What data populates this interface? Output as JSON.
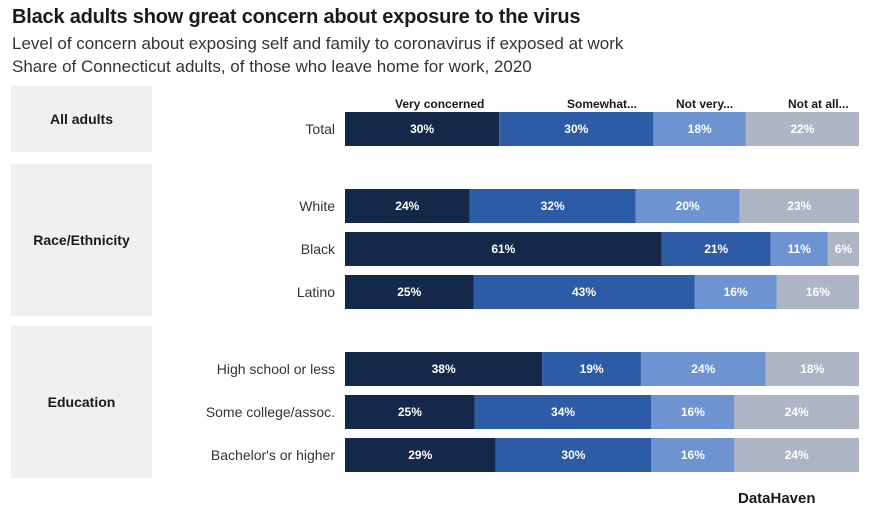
{
  "title": "Black adults show great concern about exposure to the virus",
  "subtitle_lines": [
    "Level of concern about exposing self and family to coronavirus if exposed at work",
    "Share of Connecticut adults, of those who leave home for work, 2020"
  ],
  "source": "DataHaven",
  "groups": [
    {
      "label": "All adults"
    },
    {
      "label": "Race/Ethnicity"
    },
    {
      "label": "Education"
    }
  ],
  "legend": [
    {
      "label": "Very concerned",
      "color": "#14294a"
    },
    {
      "label": "Somewhat...",
      "color": "#2d5ba6"
    },
    {
      "label": "Not very...",
      "color": "#6d93d1"
    },
    {
      "label": "Not at all...",
      "color": "#adb4c4"
    }
  ],
  "chart_data": {
    "type": "bar",
    "orientation": "horizontal",
    "stacked": true,
    "unit": "%",
    "categories": [
      "Total",
      "White",
      "Black",
      "Latino",
      "High school or less",
      "Some college/assoc.",
      "Bachelor's or higher"
    ],
    "category_groups": [
      "All adults",
      "Race/Ethnicity",
      "Race/Ethnicity",
      "Race/Ethnicity",
      "Education",
      "Education",
      "Education"
    ],
    "series": [
      {
        "name": "Very concerned",
        "values": [
          30,
          24,
          61,
          25,
          38,
          25,
          29
        ]
      },
      {
        "name": "Somewhat...",
        "values": [
          30,
          32,
          21,
          43,
          19,
          34,
          30
        ]
      },
      {
        "name": "Not very...",
        "values": [
          18,
          20,
          11,
          16,
          24,
          16,
          16
        ]
      },
      {
        "name": "Not at all...",
        "values": [
          22,
          23,
          6,
          16,
          18,
          24,
          24
        ]
      }
    ],
    "legend_placement": "top"
  }
}
